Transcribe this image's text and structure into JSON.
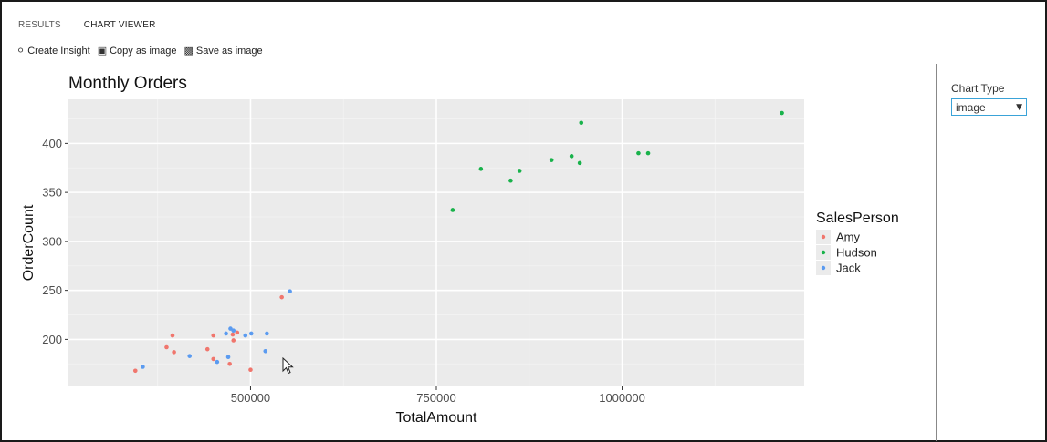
{
  "tabs": [
    {
      "label": "RESULTS",
      "active": false
    },
    {
      "label": "CHART VIEWER",
      "active": true
    }
  ],
  "toolbar": {
    "create_insight": {
      "label": "Create Insight",
      "icon": "insight-icon"
    },
    "copy_image": {
      "label": "Copy as image",
      "icon": "copy-image-icon"
    },
    "save_image": {
      "label": "Save as image",
      "icon": "save-image-icon"
    }
  },
  "side": {
    "chart_type_label": "Chart Type",
    "chart_type_value": "image"
  },
  "colors": {
    "Amy": "#f0766d",
    "Hudson": "#19b24b",
    "Jack": "#5b9bf0",
    "panel": "#ebebeb",
    "grid_major": "#ffffff",
    "grid_minor": "#f4f4f4"
  },
  "chart_data": {
    "type": "scatter",
    "title": "Monthly Orders",
    "xlabel": "TotalAmount",
    "ylabel": "OrderCount",
    "xlim": [
      255000,
      1245000
    ],
    "ylim": [
      152,
      445
    ],
    "xticks": [
      500000,
      750000,
      1000000
    ],
    "xtick_labels": [
      "500000",
      "750000",
      "1000000"
    ],
    "yticks": [
      200,
      250,
      300,
      350,
      400
    ],
    "ytick_labels": [
      "200",
      "250",
      "300",
      "350",
      "400"
    ],
    "grid": true,
    "legend": {
      "title": "SalesPerson",
      "placement": "right"
    },
    "series": [
      {
        "name": "Amy",
        "points": [
          [
            345000,
            168
          ],
          [
            387000,
            192
          ],
          [
            395000,
            204
          ],
          [
            397000,
            187
          ],
          [
            442000,
            190
          ],
          [
            450000,
            204
          ],
          [
            450000,
            180
          ],
          [
            472000,
            175
          ],
          [
            476000,
            205
          ],
          [
            477000,
            199
          ],
          [
            482000,
            207
          ],
          [
            500000,
            169
          ],
          [
            542000,
            243
          ]
        ]
      },
      {
        "name": "Hudson",
        "points": [
          [
            772000,
            332
          ],
          [
            810000,
            374
          ],
          [
            850000,
            362
          ],
          [
            862000,
            372
          ],
          [
            905000,
            383
          ],
          [
            932000,
            387
          ],
          [
            943000,
            380
          ],
          [
            945000,
            421
          ],
          [
            1022000,
            390
          ],
          [
            1035000,
            390
          ],
          [
            1215000,
            431
          ]
        ]
      },
      {
        "name": "Jack",
        "points": [
          [
            355000,
            172
          ],
          [
            418000,
            183
          ],
          [
            455000,
            177
          ],
          [
            467000,
            206
          ],
          [
            470000,
            182
          ],
          [
            473000,
            211
          ],
          [
            477000,
            209
          ],
          [
            493000,
            204
          ],
          [
            501000,
            206
          ],
          [
            520000,
            188
          ],
          [
            522000,
            206
          ],
          [
            553000,
            249
          ]
        ]
      }
    ]
  }
}
